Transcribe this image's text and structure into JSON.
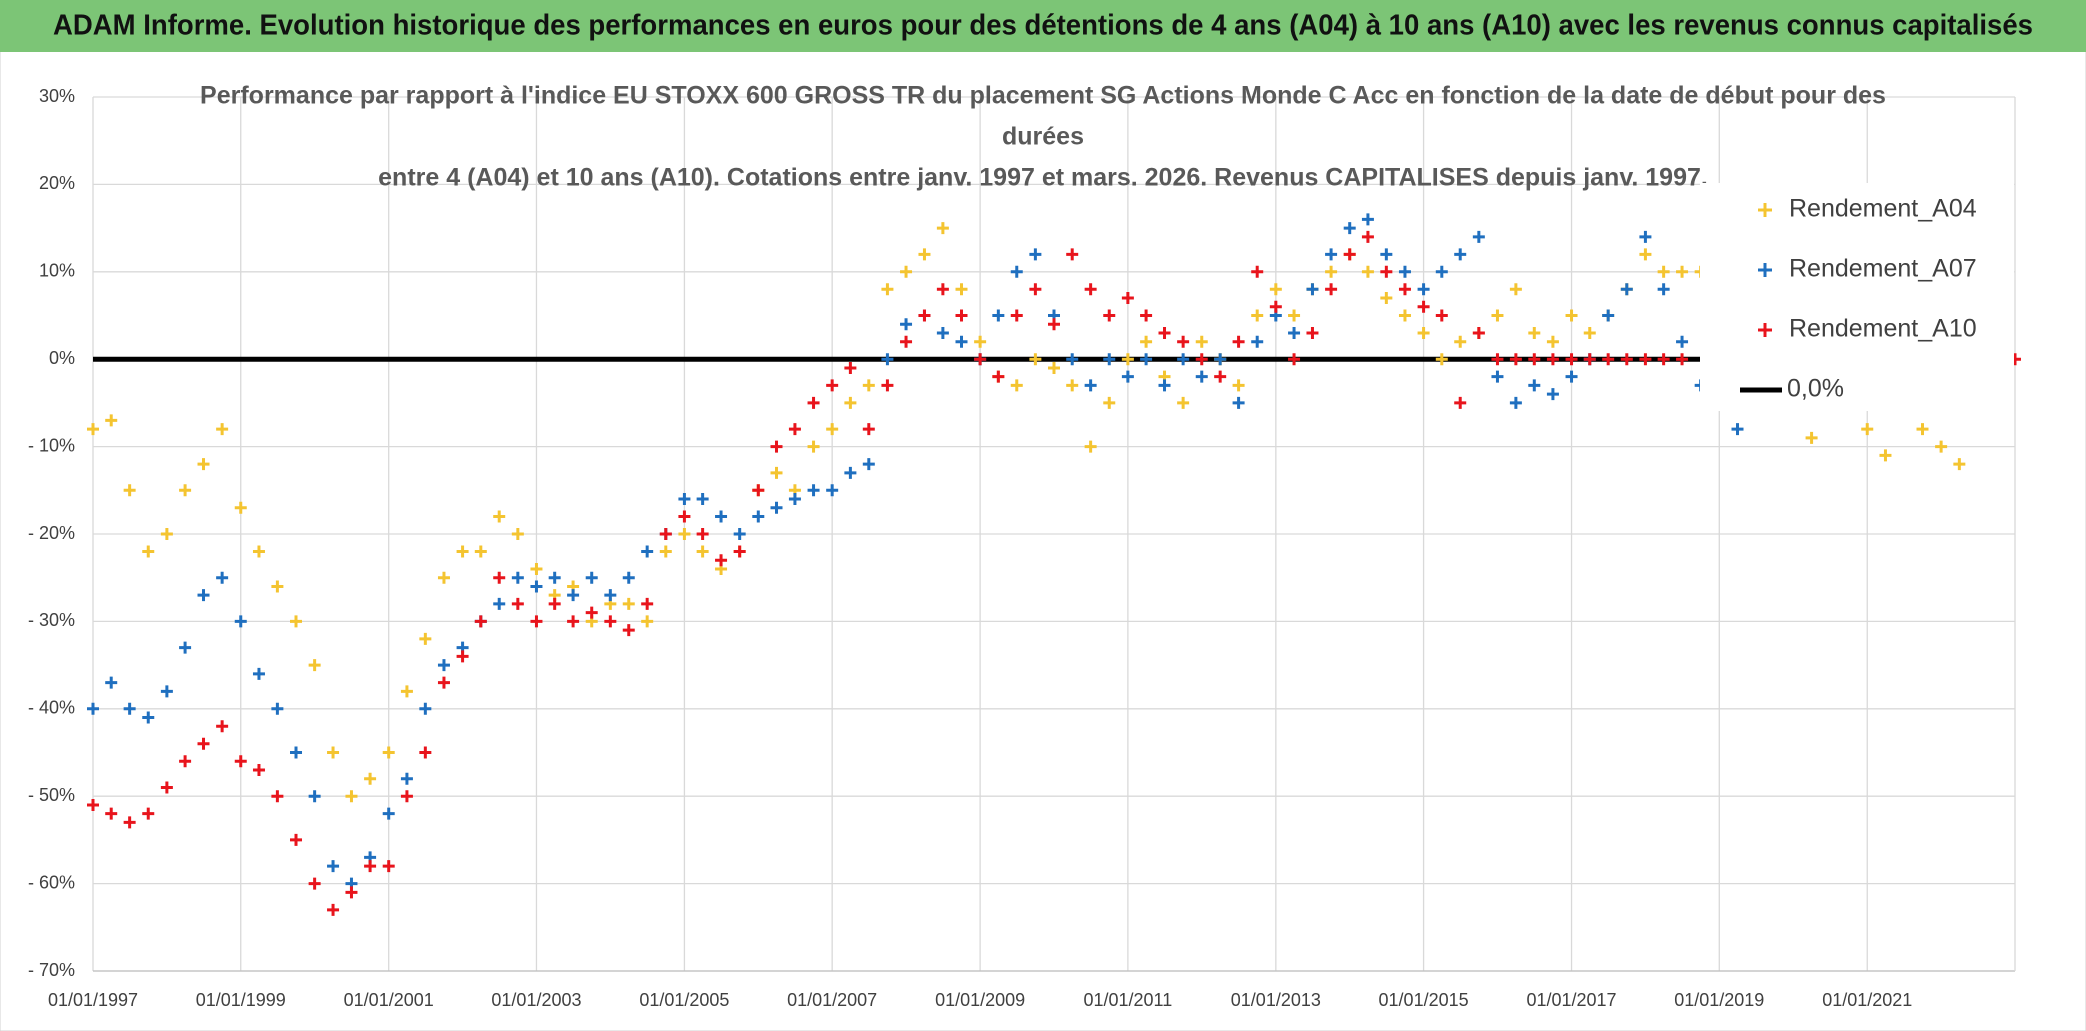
{
  "header": {
    "title": "ADAM Informe. Evolution historique des performances en euros pour des détentions de 4 ans (A04) à 10 ans (A10) avec les revenus connus capitalisés"
  },
  "chart_data": {
    "type": "scatter",
    "title": [
      "Performance par rapport à l'indice EU STOXX 600 GROSS TR  du placement SG Actions Monde C Acc en fonction de la date de début pour des",
      "durées",
      "entre 4 (A04) et 10 ans (A10). Cotations entre janv. 1997 et mars. 2026. Revenus CAPITALISES depuis janv. 1997."
    ],
    "grid": true,
    "legend": "right",
    "xlim": [
      "1997-01-01",
      "2023-01-01"
    ],
    "xticks": [
      {
        "value": "1997-01-01",
        "label": "01/01/1997"
      },
      {
        "value": "1999-01-01",
        "label": "01/01/1999"
      },
      {
        "value": "2001-01-01",
        "label": "01/01/2001"
      },
      {
        "value": "2003-01-01",
        "label": "01/01/2003"
      },
      {
        "value": "2005-01-01",
        "label": "01/01/2005"
      },
      {
        "value": "2007-01-01",
        "label": "01/01/2007"
      },
      {
        "value": "2009-01-01",
        "label": "01/01/2009"
      },
      {
        "value": "2011-01-01",
        "label": "01/01/2011"
      },
      {
        "value": "2013-01-01",
        "label": "01/01/2013"
      },
      {
        "value": "2015-01-01",
        "label": "01/01/2015"
      },
      {
        "value": "2017-01-01",
        "label": "01/01/2017"
      },
      {
        "value": "2019-01-01",
        "label": "01/01/2019"
      },
      {
        "value": "2021-01-01",
        "label": "01/01/2021"
      }
    ],
    "ylim": [
      -70,
      30
    ],
    "yticks": [
      {
        "value": 30,
        "label": "30%"
      },
      {
        "value": 20,
        "label": "20%"
      },
      {
        "value": 10,
        "label": "10%"
      },
      {
        "value": 0,
        "label": "0%"
      },
      {
        "value": -10,
        "label": "- 10%"
      },
      {
        "value": -20,
        "label": "- 20%"
      },
      {
        "value": -30,
        "label": "- 30%"
      },
      {
        "value": -40,
        "label": "- 40%"
      },
      {
        "value": -50,
        "label": "- 50%"
      },
      {
        "value": -60,
        "label": "- 60%"
      },
      {
        "value": -70,
        "label": "- 70%"
      }
    ],
    "x": [
      "1997-01-01",
      "1997-04-01",
      "1997-07-01",
      "1997-10-01",
      "1998-01-01",
      "1998-04-01",
      "1998-07-01",
      "1998-10-01",
      "1999-01-01",
      "1999-04-01",
      "1999-07-01",
      "1999-10-01",
      "2000-01-01",
      "2000-04-01",
      "2000-07-01",
      "2000-10-01",
      "2001-01-01",
      "2001-04-01",
      "2001-07-01",
      "2001-10-01",
      "2002-01-01",
      "2002-04-01",
      "2002-07-01",
      "2002-10-01",
      "2003-01-01",
      "2003-04-01",
      "2003-07-01",
      "2003-10-01",
      "2004-01-01",
      "2004-04-01",
      "2004-07-01",
      "2004-10-01",
      "2005-01-01",
      "2005-04-01",
      "2005-07-01",
      "2005-10-01",
      "2006-01-01",
      "2006-04-01",
      "2006-07-01",
      "2006-10-01",
      "2007-01-01",
      "2007-04-01",
      "2007-07-01",
      "2007-10-01",
      "2008-01-01",
      "2008-04-01",
      "2008-07-01",
      "2008-10-01",
      "2009-01-01",
      "2009-04-01",
      "2009-07-01",
      "2009-10-01",
      "2010-01-01",
      "2010-04-01",
      "2010-07-01",
      "2010-10-01",
      "2011-01-01",
      "2011-04-01",
      "2011-07-01",
      "2011-10-01",
      "2012-01-01",
      "2012-04-01",
      "2012-07-01",
      "2012-10-01",
      "2013-01-01",
      "2013-04-01",
      "2013-07-01",
      "2013-10-01",
      "2014-01-01",
      "2014-04-01",
      "2014-07-01",
      "2014-10-01",
      "2015-01-01",
      "2015-04-01",
      "2015-07-01",
      "2015-10-01",
      "2016-01-01",
      "2016-04-01",
      "2016-07-01",
      "2016-10-01",
      "2017-01-01",
      "2017-04-01",
      "2017-07-01",
      "2017-10-01",
      "2018-01-01",
      "2018-04-01",
      "2018-07-01",
      "2018-10-01",
      "2019-01-01",
      "2019-04-01",
      "2019-07-01",
      "2019-10-01",
      "2020-01-01",
      "2020-04-01",
      "2020-07-01",
      "2020-10-01",
      "2021-01-01",
      "2021-04-01",
      "2021-07-01",
      "2021-10-01",
      "2022-01-01",
      "2022-04-01",
      "2022-07-01",
      "2022-10-01",
      "2023-01-01"
    ],
    "series": [
      {
        "name": "Rendement_A04",
        "color": "#f4c430",
        "values": [
          -8,
          -7,
          -15,
          -22,
          -20,
          -15,
          -12,
          -8,
          -17,
          -22,
          -26,
          -30,
          -35,
          -45,
          -50,
          -48,
          -45,
          -38,
          -32,
          -25,
          -22,
          -22,
          -18,
          -20,
          -24,
          -27,
          -26,
          -30,
          -28,
          -28,
          -30,
          -22,
          -20,
          -22,
          -24,
          -22,
          -15,
          -13,
          -15,
          -10,
          -8,
          -5,
          -3,
          8,
          10,
          12,
          15,
          8,
          2,
          -2,
          -3,
          0,
          -1,
          -3,
          -10,
          -5,
          0,
          2,
          -2,
          -5,
          2,
          0,
          -3,
          5,
          8,
          5,
          8,
          10,
          12,
          10,
          7,
          5,
          3,
          0,
          2,
          3,
          5,
          8,
          3,
          2,
          5,
          3,
          5,
          8,
          12,
          10,
          10,
          10,
          null,
          null,
          null,
          null,
          null,
          -9,
          null,
          null,
          -8,
          -11,
          null,
          -8,
          -10,
          -12,
          null,
          null,
          null
        ]
      },
      {
        "name": "Rendement_A07",
        "color": "#1f6fbf",
        "values": [
          -40,
          -37,
          -40,
          -41,
          -38,
          -33,
          -27,
          -25,
          -30,
          -36,
          -40,
          -45,
          -50,
          -58,
          -60,
          -57,
          -52,
          -48,
          -40,
          -35,
          -33,
          -30,
          -28,
          -25,
          -26,
          -25,
          -27,
          -25,
          -27,
          -25,
          -22,
          -20,
          -16,
          -16,
          -18,
          -20,
          -18,
          -17,
          -16,
          -15,
          -15,
          -13,
          -12,
          0,
          4,
          5,
          3,
          2,
          0,
          5,
          10,
          12,
          5,
          0,
          -3,
          0,
          -2,
          0,
          -3,
          0,
          -2,
          0,
          -5,
          2,
          5,
          3,
          8,
          12,
          15,
          16,
          12,
          10,
          8,
          10,
          12,
          14,
          -2,
          -5,
          -3,
          -4,
          -2,
          0,
          5,
          8,
          14,
          8,
          2,
          -3,
          null,
          -8,
          null,
          null,
          null,
          null,
          null,
          null,
          null,
          null,
          null,
          null,
          null,
          null,
          null,
          null,
          null
        ]
      },
      {
        "name": "Rendement_A10",
        "color": "#e8141c",
        "values": [
          -51,
          -52,
          -53,
          -52,
          -49,
          -46,
          -44,
          -42,
          -46,
          -47,
          -50,
          -55,
          -60,
          -63,
          -61,
          -58,
          -58,
          -50,
          -45,
          -37,
          -34,
          -30,
          -25,
          -28,
          -30,
          -28,
          -30,
          -29,
          -30,
          -31,
          -28,
          -20,
          -18,
          -20,
          -23,
          -22,
          -15,
          -10,
          -8,
          -5,
          -3,
          -1,
          -8,
          -3,
          2,
          5,
          8,
          5,
          0,
          -2,
          5,
          8,
          4,
          12,
          8,
          5,
          7,
          5,
          3,
          2,
          0,
          -2,
          2,
          10,
          6,
          0,
          3,
          8,
          12,
          14,
          10,
          8,
          6,
          5,
          -5,
          3,
          0,
          0,
          0,
          0,
          0,
          0,
          0,
          0,
          0,
          0,
          0,
          null,
          null,
          null,
          null,
          null,
          null,
          null,
          null,
          null,
          null,
          null,
          null,
          null,
          null,
          null,
          null,
          null,
          0
        ]
      }
    ],
    "hline": {
      "name": "0,0%",
      "value": 0,
      "color": "#000000"
    }
  }
}
